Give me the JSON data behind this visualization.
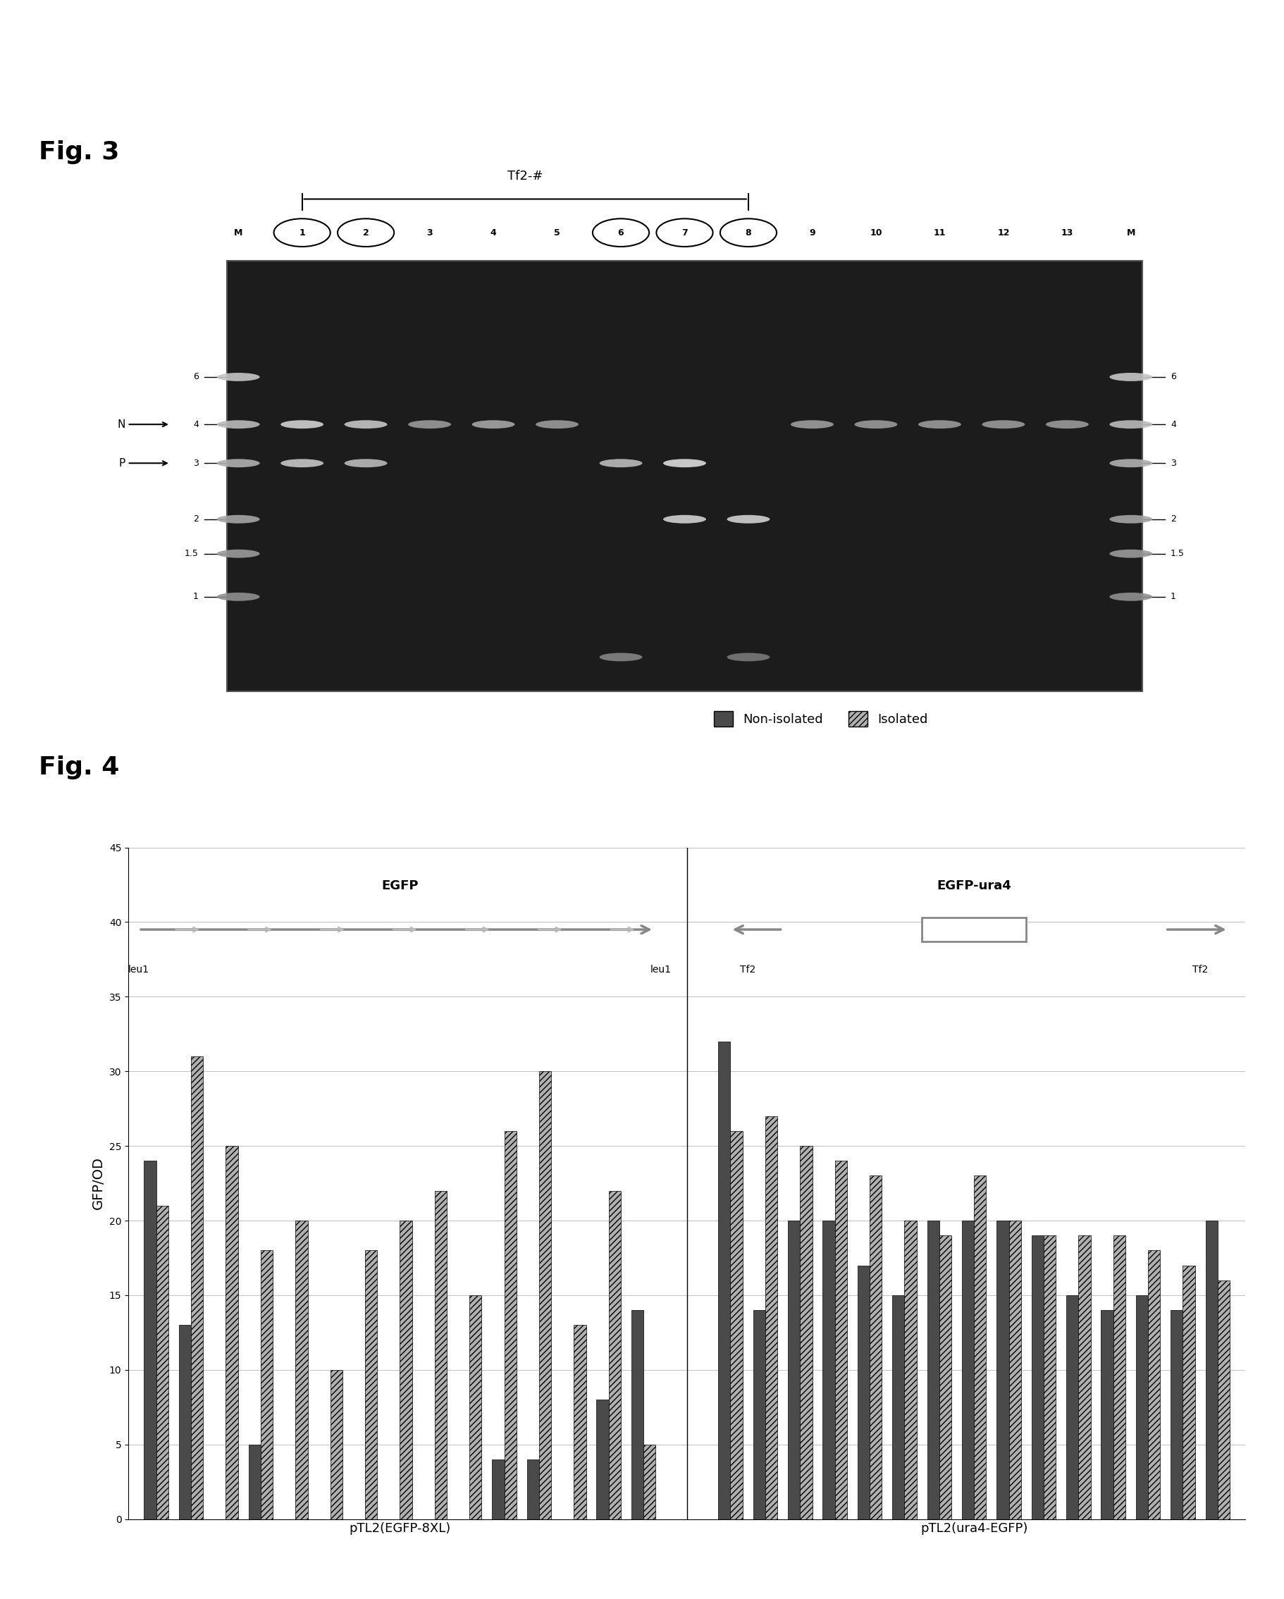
{
  "fig3": {
    "title": "Fig. 3",
    "tf2_label": "Tf2-#",
    "lane_labels": [
      "M",
      "1",
      "2",
      "3",
      "4",
      "5",
      "6",
      "7",
      "8",
      "9",
      "10",
      "11",
      "12",
      "13",
      "M"
    ],
    "circled_lanes": [
      "1",
      "2",
      "6",
      "7",
      "8"
    ],
    "left_markers": [
      "6",
      "4",
      "3",
      "2",
      "1.5",
      "1"
    ],
    "right_markers": [
      "6",
      "4",
      "3",
      "2",
      "1.5",
      "1"
    ],
    "left_arrows": [
      "N",
      "P"
    ],
    "gel_bg": "#1a1a1a"
  },
  "fig4": {
    "title": "Fig. 4",
    "ylabel": "GFP/OD",
    "ylim": [
      0,
      45
    ],
    "yticks": [
      0,
      5,
      10,
      15,
      20,
      25,
      30,
      35,
      40,
      45
    ],
    "group1_label": "pTL2(EGFP-8XL)",
    "group2_label": "pTL2(ura4-EGFP)",
    "legend_non_isolated": "Non-isolated",
    "legend_isolated": "Isolated",
    "color_non_isolated": "#4a4a4a",
    "color_isolated": "#b0b0b0",
    "egfp_label": "EGFP",
    "egfp_ura4_label": "EGFP-ura4",
    "egfp_left_label": "leu1",
    "egfp_right_label": "leu1",
    "ura4_left_label": "Tf2",
    "ura4_right_label": "Tf2",
    "group1_bars": [
      {
        "non_isolated": 24,
        "isolated": 21
      },
      {
        "non_isolated": 13,
        "isolated": 31
      },
      {
        "non_isolated": 0,
        "isolated": 25
      },
      {
        "non_isolated": 5,
        "isolated": 18
      },
      {
        "non_isolated": 0,
        "isolated": 20
      },
      {
        "non_isolated": 0,
        "isolated": 10
      },
      {
        "non_isolated": 0,
        "isolated": 18
      },
      {
        "non_isolated": 0,
        "isolated": 20
      },
      {
        "non_isolated": 0,
        "isolated": 22
      },
      {
        "non_isolated": 0,
        "isolated": 15
      },
      {
        "non_isolated": 4,
        "isolated": 26
      },
      {
        "non_isolated": 4,
        "isolated": 30
      },
      {
        "non_isolated": 0,
        "isolated": 13
      },
      {
        "non_isolated": 8,
        "isolated": 22
      },
      {
        "non_isolated": 14,
        "isolated": 5
      }
    ],
    "group2_bars": [
      {
        "non_isolated": 32,
        "isolated": 26
      },
      {
        "non_isolated": 14,
        "isolated": 27
      },
      {
        "non_isolated": 20,
        "isolated": 25
      },
      {
        "non_isolated": 20,
        "isolated": 24
      },
      {
        "non_isolated": 17,
        "isolated": 23
      },
      {
        "non_isolated": 15,
        "isolated": 20
      },
      {
        "non_isolated": 20,
        "isolated": 19
      },
      {
        "non_isolated": 20,
        "isolated": 23
      },
      {
        "non_isolated": 20,
        "isolated": 20
      },
      {
        "non_isolated": 19,
        "isolated": 19
      },
      {
        "non_isolated": 15,
        "isolated": 19
      },
      {
        "non_isolated": 14,
        "isolated": 19
      },
      {
        "non_isolated": 15,
        "isolated": 18
      },
      {
        "non_isolated": 14,
        "isolated": 17
      },
      {
        "non_isolated": 20,
        "isolated": 16
      }
    ]
  }
}
